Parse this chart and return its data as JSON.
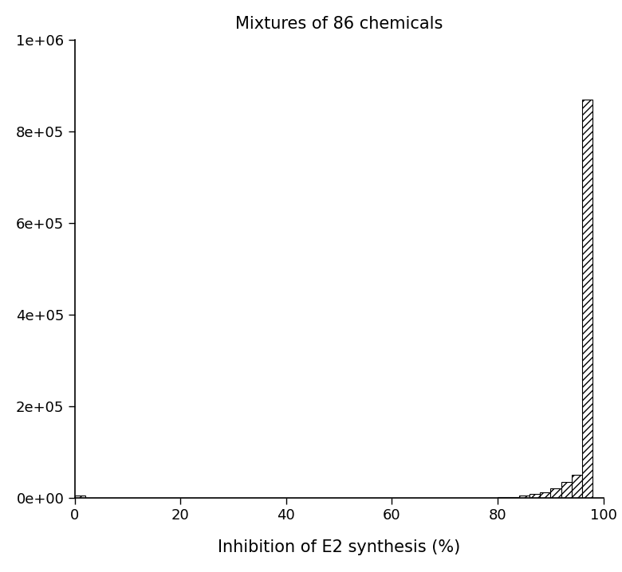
{
  "title": "Mixtures of 86 chemicals",
  "xlabel": "Inhibition of E2 synthesis (%)",
  "xlim": [
    0,
    100
  ],
  "ylim": [
    0,
    1000000
  ],
  "yticks": [
    0,
    200000,
    400000,
    600000,
    800000,
    1000000
  ],
  "ytick_labels": [
    "0e+00",
    "2e+05",
    "4e+05",
    "6e+05",
    "8e+05",
    "1e+06"
  ],
  "xticks": [
    0,
    20,
    40,
    60,
    80,
    100
  ],
  "bin_edges": [
    0,
    2,
    4,
    6,
    8,
    10,
    12,
    14,
    16,
    18,
    20,
    22,
    24,
    26,
    28,
    30,
    32,
    34,
    36,
    38,
    40,
    42,
    44,
    46,
    48,
    50,
    52,
    54,
    56,
    58,
    60,
    62,
    64,
    66,
    68,
    70,
    72,
    74,
    76,
    78,
    80,
    82,
    84,
    86,
    88,
    90,
    92,
    94,
    96,
    98,
    100
  ],
  "bin_counts": [
    4000,
    80,
    40,
    20,
    15,
    8,
    8,
    4,
    4,
    4,
    4,
    4,
    4,
    4,
    4,
    4,
    4,
    4,
    4,
    4,
    4,
    4,
    4,
    4,
    4,
    4,
    4,
    4,
    4,
    4,
    4,
    4,
    4,
    4,
    4,
    4,
    4,
    4,
    4,
    4,
    400,
    1500,
    4000,
    8000,
    12000,
    20000,
    35000,
    50000,
    870000,
    0
  ],
  "hatch": "////",
  "facecolor": "white",
  "edgecolor": "black",
  "background_color": "white",
  "title_fontsize": 15,
  "label_fontsize": 15,
  "tick_fontsize": 13
}
